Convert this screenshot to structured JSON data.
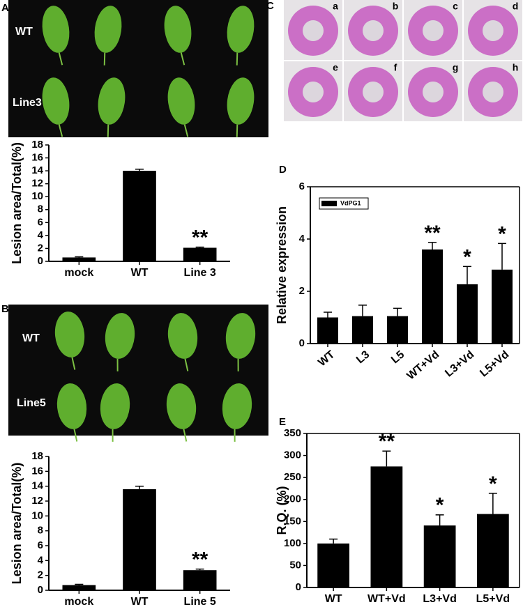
{
  "panel_labels": [
    "A",
    "B",
    "C",
    "D",
    "E"
  ],
  "photos": [
    {
      "labels": [
        "WT",
        "Line3"
      ]
    },
    {
      "labels": [
        "WT",
        "Line5"
      ]
    },
    {
      "labels": [
        "a",
        "b",
        "c",
        "d",
        "e",
        "f",
        "g",
        "h"
      ]
    }
  ],
  "chart_data": [
    {
      "type": "bar",
      "y_label": "Lesion area/Total(%)",
      "categories": [
        "mock",
        "WT",
        "Line 3"
      ],
      "values": [
        0.6,
        14.0,
        2.1
      ],
      "errors": [
        0.1,
        0.25,
        0.1
      ],
      "color": "#000000",
      "ylim": [
        0,
        18
      ],
      "yticks": [
        0,
        2,
        4,
        6,
        8,
        10,
        12,
        14,
        16,
        18
      ],
      "annotations": [
        {
          "index": 2,
          "text": "**"
        }
      ]
    },
    {
      "type": "bar",
      "y_label": "Lesion area/Total(%)",
      "categories": [
        "mock",
        "WT",
        "Line 5"
      ],
      "values": [
        0.7,
        13.6,
        2.7
      ],
      "errors": [
        0.1,
        0.4,
        0.15
      ],
      "color": "#000000",
      "ylim": [
        0,
        18
      ],
      "yticks": [
        0,
        2,
        4,
        6,
        8,
        10,
        12,
        14,
        16,
        18
      ],
      "annotations": [
        {
          "index": 2,
          "text": "**"
        }
      ]
    },
    {
      "type": "bar",
      "y_label": "Relative expression",
      "categories": [
        "WT",
        "L3",
        "L5",
        "WT+Vd",
        "L3+Vd",
        "L5+Vd"
      ],
      "series": [
        {
          "name": "VdPG1",
          "color": "#000000",
          "values": [
            1.0,
            1.05,
            1.05,
            3.6,
            2.27,
            2.83
          ],
          "errors": [
            0.2,
            0.42,
            0.3,
            0.27,
            0.68,
            1.0
          ]
        }
      ],
      "ylim": [
        0,
        6
      ],
      "yticks": [
        0,
        2,
        4,
        6
      ],
      "annotations": [
        {
          "index": 3,
          "text": "**"
        },
        {
          "index": 4,
          "text": "*"
        },
        {
          "index": 5,
          "text": "*"
        }
      ]
    },
    {
      "type": "bar",
      "y_label": "R.Q. (%)",
      "categories": [
        "WT",
        "WT+Vd",
        "L3+Vd",
        "L5+Vd"
      ],
      "values": [
        100,
        275,
        141,
        167
      ],
      "errors": [
        10,
        35,
        24,
        47
      ],
      "color": "#000000",
      "ylim": [
        0,
        350
      ],
      "yticks": [
        0,
        50,
        100,
        150,
        200,
        250,
        300,
        350
      ],
      "annotations": [
        {
          "index": 1,
          "text": "**"
        },
        {
          "index": 2,
          "text": "*"
        },
        {
          "index": 3,
          "text": "*"
        }
      ]
    }
  ]
}
